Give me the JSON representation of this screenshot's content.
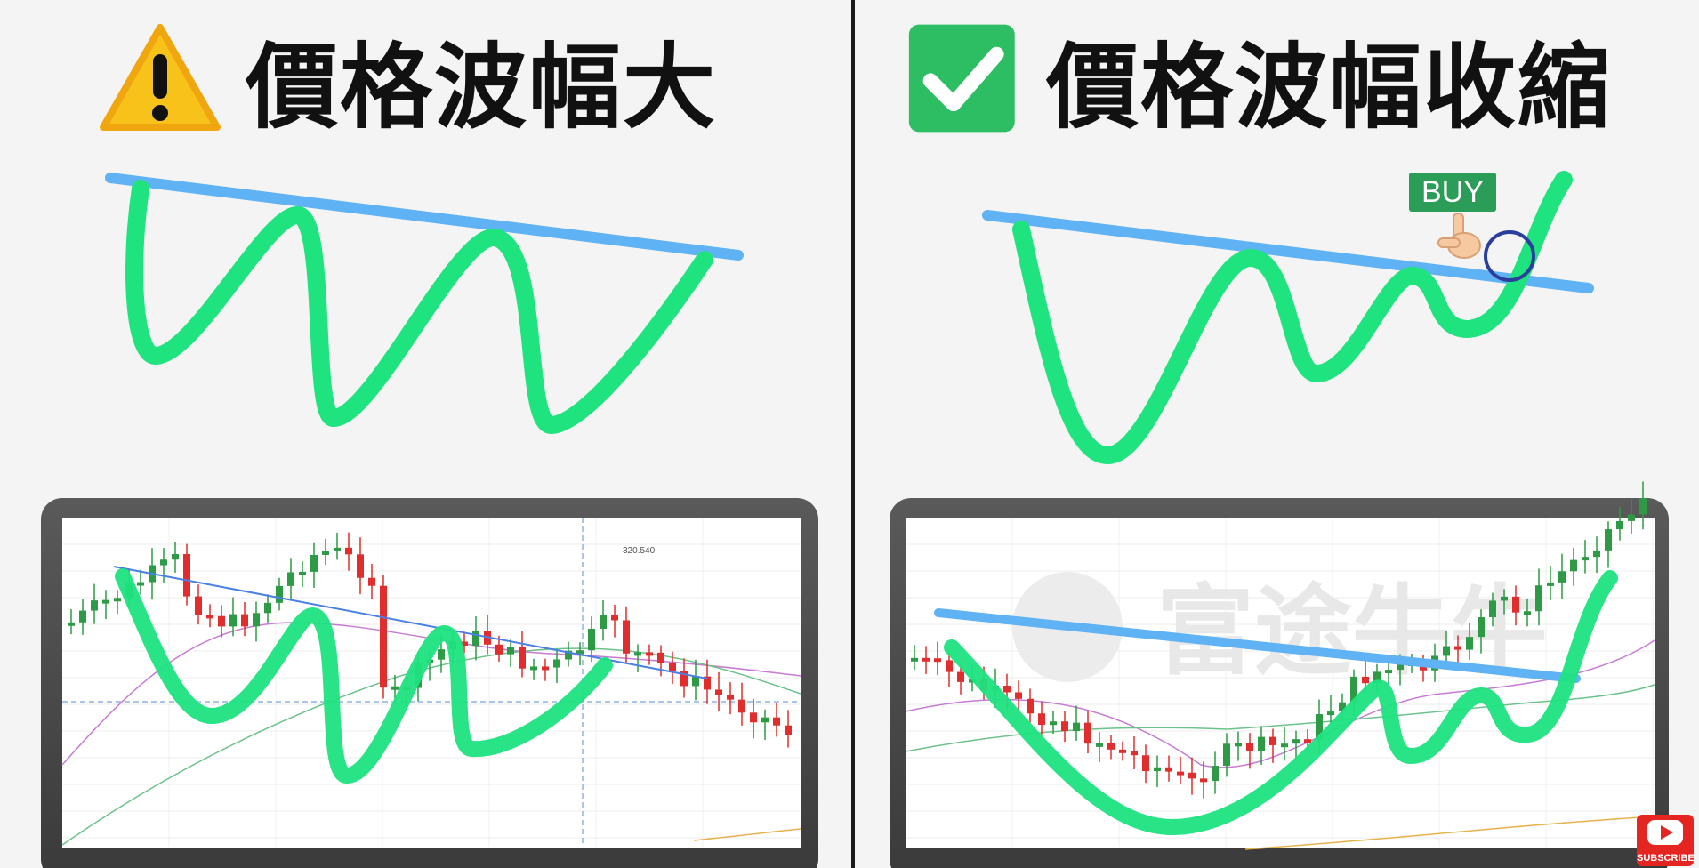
{
  "left_panel": {
    "title": "價格波幅大",
    "icon": "warning-icon",
    "chart_price_label": "320.540"
  },
  "right_panel": {
    "title": "價格波幅收縮",
    "icon": "check-icon",
    "buy_label": "BUY",
    "watermark": "富途牛牛"
  },
  "colors": {
    "trendline": "#5fb2f4",
    "wave": "#1ee37f",
    "bull_candle": "#2e9a45",
    "bear_candle": "#e02d2d",
    "warning": "#f7c21a",
    "check": "#2dbd63"
  },
  "subscribe_label": "SUBSCRIBE"
}
